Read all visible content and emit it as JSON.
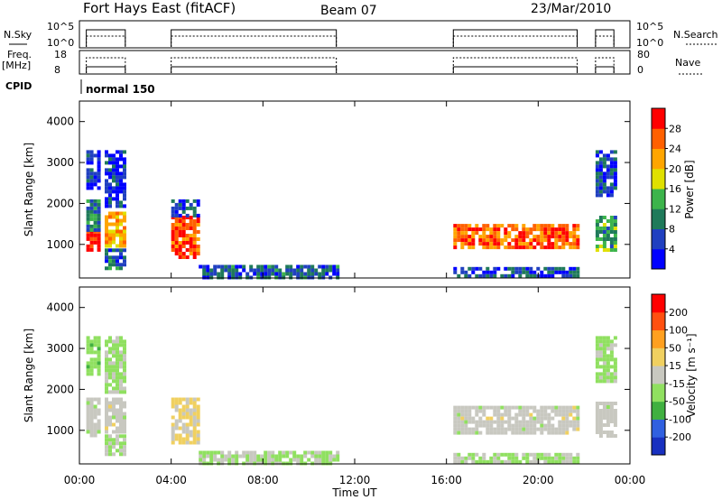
{
  "header": {
    "title": "Fort Hays East (fitACF)",
    "beam": "Beam 07",
    "date": "23/Mar/2010"
  },
  "summary": {
    "nsky_label": "N.Sky",
    "nsearch_label": "N.Search",
    "log_ticks": [
      "10^5",
      "10^0"
    ],
    "freq_label_1": "Freq.",
    "freq_label_2": "[MHz]",
    "freq_ticks": [
      "18",
      "8"
    ],
    "nave_label": "Nave",
    "nave_ticks": [
      "80",
      "0"
    ],
    "cpid_label": "CPID",
    "cpid_value": "normal 150"
  },
  "colors": {
    "power": [
      "#0000ff",
      "#2040c0",
      "#1f7a5a",
      "#3cb44b",
      "#e0e000",
      "#ffa500",
      "#ff6000",
      "#ff0000"
    ],
    "velocity": [
      "#1830c0",
      "#3060e0",
      "#40b040",
      "#90e060",
      "#c8c8c0",
      "#f0d060",
      "#ffa020",
      "#ff5010",
      "#ff0000"
    ]
  },
  "chart_data": [
    {
      "type": "heatmap",
      "name": "power",
      "ylabel": "Slant Range [km]",
      "xlabel": "Time UT",
      "x_ticks": [
        "00:00",
        "04:00",
        "08:00",
        "12:00",
        "16:00",
        "20:00",
        "00:00"
      ],
      "y_ticks": [
        "1000",
        "2000",
        "3000",
        "4000"
      ],
      "xlim": [
        0,
        24
      ],
      "ylim": [
        180,
        4500
      ],
      "colorbar": {
        "label": "Power [dB]",
        "ticks": [
          "28",
          "24",
          "20",
          "16",
          "12",
          "8",
          "4"
        ],
        "range": [
          0,
          30
        ]
      },
      "blocks": [
        {
          "t": [
            0.3,
            0.85
          ],
          "r": [
            900,
            1350
          ],
          "level": 27
        },
        {
          "t": [
            0.3,
            0.85
          ],
          "r": [
            1350,
            2100
          ],
          "level": 10
        },
        {
          "t": [
            0.3,
            0.85
          ],
          "r": [
            2400,
            3300
          ],
          "level": 5
        },
        {
          "t": [
            1.1,
            2.0
          ],
          "r": [
            1000,
            1800
          ],
          "level": 20
        },
        {
          "t": [
            1.1,
            2.0
          ],
          "r": [
            400,
            900
          ],
          "level": 8
        },
        {
          "t": [
            1.1,
            2.0
          ],
          "r": [
            1900,
            3300
          ],
          "level": 4
        },
        {
          "t": [
            4.0,
            5.2
          ],
          "r": [
            700,
            1700
          ],
          "level": 25
        },
        {
          "t": [
            4.0,
            5.2
          ],
          "r": [
            1700,
            2100
          ],
          "level": 6
        },
        {
          "t": [
            5.2,
            11.2
          ],
          "r": [
            200,
            500
          ],
          "level": 7
        },
        {
          "t": [
            16.3,
            21.7
          ],
          "r": [
            950,
            1500
          ],
          "level": 24
        },
        {
          "t": [
            16.3,
            21.7
          ],
          "r": [
            200,
            450
          ],
          "level": 6
        },
        {
          "t": [
            22.5,
            23.3
          ],
          "r": [
            900,
            1700
          ],
          "level": 12
        },
        {
          "t": [
            22.5,
            23.3
          ],
          "r": [
            2200,
            3300
          ],
          "level": 5
        }
      ]
    },
    {
      "type": "heatmap",
      "name": "velocity",
      "ylabel": "Slant Range [km]",
      "xlabel": "Time UT",
      "x_ticks": [
        "00:00",
        "04:00",
        "08:00",
        "12:00",
        "16:00",
        "20:00",
        "00:00"
      ],
      "y_ticks": [
        "1000",
        "2000",
        "3000",
        "4000"
      ],
      "xlim": [
        0,
        24
      ],
      "ylim": [
        180,
        4500
      ],
      "colorbar": {
        "label": "Velocity [m s⁻¹]",
        "ticks": [
          "200",
          "100",
          "50",
          "15",
          "-15",
          "-50",
          "-100",
          "-200"
        ],
        "range": [
          -250,
          250
        ]
      },
      "blocks": [
        {
          "t": [
            0.3,
            0.85
          ],
          "r": [
            900,
            1800
          ],
          "level": 0
        },
        {
          "t": [
            0.3,
            0.85
          ],
          "r": [
            2400,
            3300
          ],
          "level": -60
        },
        {
          "t": [
            1.1,
            2.0
          ],
          "r": [
            1000,
            1800
          ],
          "level": 0
        },
        {
          "t": [
            1.1,
            2.0
          ],
          "r": [
            400,
            900
          ],
          "level": -20
        },
        {
          "t": [
            1.1,
            2.0
          ],
          "r": [
            1900,
            3300
          ],
          "level": -40
        },
        {
          "t": [
            4.0,
            5.2
          ],
          "r": [
            700,
            1800
          ],
          "level": 30
        },
        {
          "t": [
            5.2,
            11.2
          ],
          "r": [
            200,
            500
          ],
          "level": -30
        },
        {
          "t": [
            16.3,
            21.7
          ],
          "r": [
            950,
            1600
          ],
          "level": 0
        },
        {
          "t": [
            16.3,
            21.7
          ],
          "r": [
            200,
            450
          ],
          "level": -30
        },
        {
          "t": [
            22.5,
            23.3
          ],
          "r": [
            900,
            1700
          ],
          "level": 0
        },
        {
          "t": [
            22.5,
            23.3
          ],
          "r": [
            2200,
            3300
          ],
          "level": -40
        }
      ]
    }
  ]
}
